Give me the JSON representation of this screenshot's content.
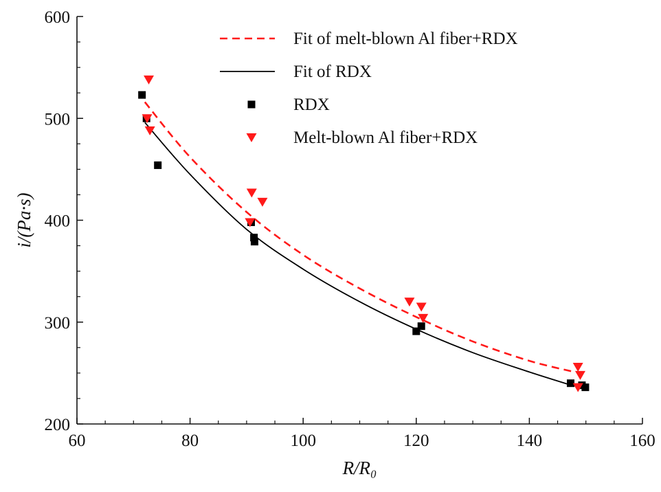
{
  "chart_data": {
    "type": "scatter",
    "xlabel": "R/R₀",
    "ylabel": "i/(Pa·s)",
    "xlim": [
      60,
      160
    ],
    "ylim": [
      200,
      600
    ],
    "x_ticks": [
      60,
      80,
      100,
      120,
      140,
      160
    ],
    "y_ticks": [
      200,
      300,
      400,
      500,
      600
    ],
    "grid": false,
    "legend_position": "top-right",
    "series": [
      {
        "name": "RDX",
        "kind": "points",
        "marker": "square",
        "color": "#000000",
        "x": [
          71.5,
          72.3,
          74.3,
          90.8,
          91.3,
          91.4,
          120.0,
          120.9,
          147.3,
          149.3,
          149.9
        ],
        "y": [
          523,
          500,
          454,
          398,
          383,
          379,
          291,
          296,
          240,
          238,
          236
        ]
      },
      {
        "name": "Melt-blown Al fiber+RDX",
        "kind": "points",
        "marker": "triangle-down",
        "color": "#ff1a1a",
        "x": [
          72.7,
          72.4,
          72.9,
          90.6,
          90.9,
          92.8,
          118.8,
          120.9,
          121.2,
          148.6,
          149.0,
          148.6
        ],
        "y": [
          538,
          500,
          488,
          398,
          427,
          418,
          320,
          315,
          304,
          256,
          248,
          236
        ]
      },
      {
        "name": "Fit of RDX",
        "kind": "line",
        "style": "solid",
        "color": "#000000",
        "x": [
          72,
          80,
          90,
          100,
          110,
          120,
          130,
          140,
          148
        ],
        "y": [
          496,
          445,
          391,
          352,
          320,
          293,
          270,
          251,
          237
        ]
      },
      {
        "name": "Fit of melt-blown Al fiber+RDX",
        "kind": "line",
        "style": "dashed",
        "color": "#ff1a1a",
        "x": [
          72,
          80,
          90,
          100,
          110,
          120,
          130,
          140,
          148
        ],
        "y": [
          516,
          462,
          408,
          366,
          333,
          305,
          281,
          262,
          251
        ]
      }
    ],
    "legend_order": [
      "Fit of melt-blown Al fiber+RDX",
      "Fit of RDX",
      "RDX",
      "Melt-blown Al fiber+RDX"
    ]
  }
}
